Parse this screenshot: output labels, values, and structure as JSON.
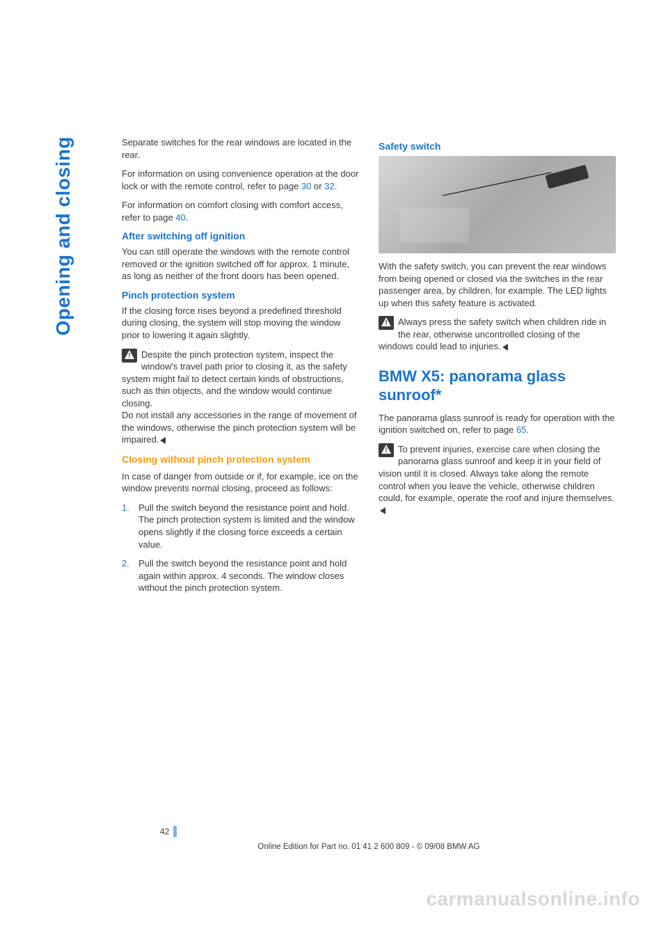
{
  "side_tab": "Opening and closing",
  "left_col": {
    "intro_p1": "Separate switches for the rear windows are located in the rear.",
    "intro_p2_a": "For information on using convenience operation at the door lock or with the remote control, refer to page ",
    "intro_p2_link1": "30",
    "intro_p2_mid": " or ",
    "intro_p2_link2": "32",
    "intro_p2_end": ".",
    "intro_p3_a": "For information on comfort closing with comfort access, refer to page ",
    "intro_p3_link": "40",
    "intro_p3_end": ".",
    "h_after": "After switching off ignition",
    "after_p": "You can still operate the windows with the remote control removed or the ignition switched off for approx. 1 minute, as long as neither of the front doors has been opened.",
    "h_pinch": "Pinch protection system",
    "pinch_p": "If the closing force rises beyond a predefined threshold during closing, the system will stop moving the window prior to lowering it again slightly.",
    "pinch_warn": "Despite the pinch protection system, inspect the window's travel path prior to closing it, as the safety system might fail to detect certain kinds of obstructions, such as thin objects, and the window would continue closing.",
    "pinch_warn2": "Do not install any accessories in the range of movement of the windows, otherwise the pinch protection system will be impaired.",
    "h_closing": "Closing without pinch protection system",
    "closing_p": "In case of danger from outside or if, for example, ice on the window prevents normal closing, proceed as follows:",
    "li1": "Pull the switch beyond the resistance point and hold. The pinch protection system is limited and the window opens slightly if the closing force exceeds a certain value.",
    "li2": "Pull the switch beyond the resistance point and hold again within approx. 4 seconds. The window closes without the pinch protection system."
  },
  "right_col": {
    "h_safety": "Safety switch",
    "safety_p": "With the safety switch, you can prevent the rear windows from being opened or closed via the switches in the rear passenger area, by children, for example. The LED lights up when this safety feature is activated.",
    "safety_warn": "Always press the safety switch when children ride in the rear, otherwise uncontrolled closing of the windows could lead to injuries.",
    "h_section": "BMW X5: panorama glass sunroof*",
    "section_p_a": "The panorama glass sunroof is ready for operation with the ignition switched on, refer to page ",
    "section_p_link": "65",
    "section_p_end": ".",
    "section_warn": "To prevent injuries, exercise care when closing the panorama glass sunroof and keep it in your field of vision until it is closed. Always take along the remote control when you leave the vehicle, otherwise children could, for example, operate the roof and injure themselves."
  },
  "page_number": "42",
  "footer": "Online Edition for Part no. 01 41 2 600 809 - © 09/08 BMW AG",
  "watermark": "carmanualsonline.info",
  "colors": {
    "blue": "#1974cc",
    "orange": "#f39c12",
    "text": "#3a3a3a",
    "watermark": "#d8d8d8"
  }
}
